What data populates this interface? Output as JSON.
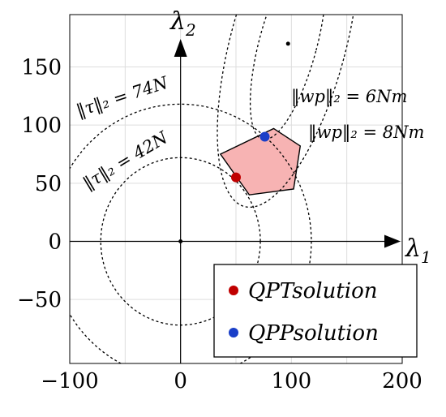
{
  "chart_data": {
    "type": "scatter",
    "xlim": [
      -100,
      200
    ],
    "ylim": [
      -105,
      195
    ],
    "grid": true,
    "x_ticks": [
      {
        "value": -100,
        "label": "−100"
      },
      {
        "value": 0,
        "label": "0"
      },
      {
        "value": 100,
        "label": "100"
      },
      {
        "value": 200,
        "label": "200"
      }
    ],
    "y_ticks": [
      {
        "value": -50,
        "label": "−50"
      },
      {
        "value": 0,
        "label": "0"
      },
      {
        "value": 50,
        "label": "50"
      },
      {
        "value": 100,
        "label": "100"
      },
      {
        "value": 150,
        "label": "150"
      }
    ],
    "grid_x": [
      -50,
      0,
      50,
      100,
      150
    ],
    "grid_y": [
      -50,
      0,
      50,
      100,
      150
    ],
    "xlabel": {
      "main": "λ",
      "sub": "1"
    },
    "ylabel": {
      "main": "λ",
      "sub": "2"
    },
    "origin_point": [
      0,
      0
    ],
    "feasible_polygon": {
      "fill": "#f7b3b3",
      "vertices": [
        [
          36,
          75
        ],
        [
          84,
          97
        ],
        [
          108,
          82
        ],
        [
          102,
          45
        ],
        [
          62,
          40
        ]
      ]
    },
    "tau_contours": [
      {
        "label": "‖τ‖₂ = 74N",
        "radius": 118
      },
      {
        "label": "‖τ‖₂ = 42N",
        "radius": 72
      }
    ],
    "wp_center": [
      97,
      170
    ],
    "wp_contours": [
      {
        "label": "‖wp‖₂ = 6Nm",
        "rx": 26,
        "ry": 85,
        "rot": 15
      },
      {
        "label": "‖wp‖₂ = 8Nm",
        "rx": 52,
        "ry": 145,
        "rot": 15
      }
    ],
    "points": [
      {
        "name": "QPT solution",
        "x": 50,
        "y": 55,
        "color": "#c00000"
      },
      {
        "name": "QPP solution",
        "x": 76,
        "y": 90,
        "color": "#1a3fc8"
      }
    ],
    "legend": {
      "placement": "bottom-right",
      "entries": [
        "QPTsolution",
        "QPPsolution"
      ]
    }
  }
}
